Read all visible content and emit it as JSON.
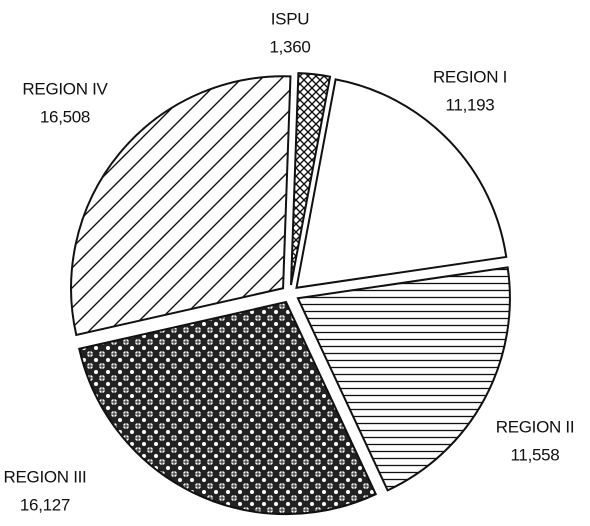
{
  "chart_data": {
    "type": "pie",
    "categories": [
      "ISPU",
      "REGION I",
      "REGION II",
      "REGION III",
      "REGION IV"
    ],
    "values": [
      1360,
      11193,
      11558,
      16127,
      16508
    ],
    "value_labels": [
      "1,360",
      "11,193",
      "11,558",
      "16,127",
      "16,508"
    ]
  }
}
